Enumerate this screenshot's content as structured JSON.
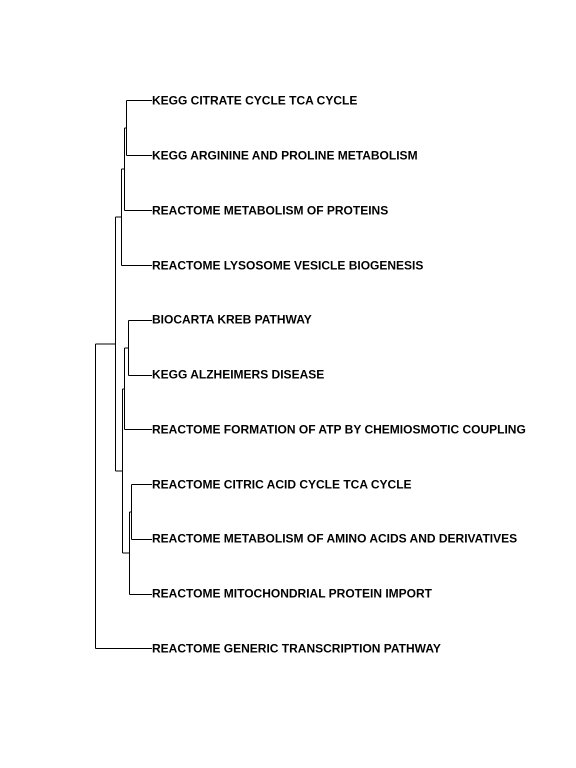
{
  "dendrogram": {
    "orientation": "horizontal",
    "line_color": "#000000",
    "leaves": [
      {
        "label": "KEGG CITRATE CYCLE TCA CYCLE"
      },
      {
        "label": "KEGG ARGININE AND PROLINE METABOLISM"
      },
      {
        "label": "REACTOME METABOLISM OF PROTEINS"
      },
      {
        "label": "REACTOME LYSOSOME VESICLE BIOGENESIS"
      },
      {
        "label": "BIOCARTA KREB PATHWAY"
      },
      {
        "label": "KEGG ALZHEIMERS DISEASE"
      },
      {
        "label": "REACTOME FORMATION OF ATP BY CHEMIOSMOTIC COUPLING"
      },
      {
        "label": "REACTOME CITRIC ACID CYCLE TCA CYCLE"
      },
      {
        "label": "REACTOME METABOLISM OF AMINO ACIDS AND DERIVATIVES"
      },
      {
        "label": "REACTOME MITOCHONDRIAL PROTEIN IMPORT"
      },
      {
        "label": "REACTOME GENERIC TRANSCRIPTION PATHWAY"
      }
    ]
  }
}
